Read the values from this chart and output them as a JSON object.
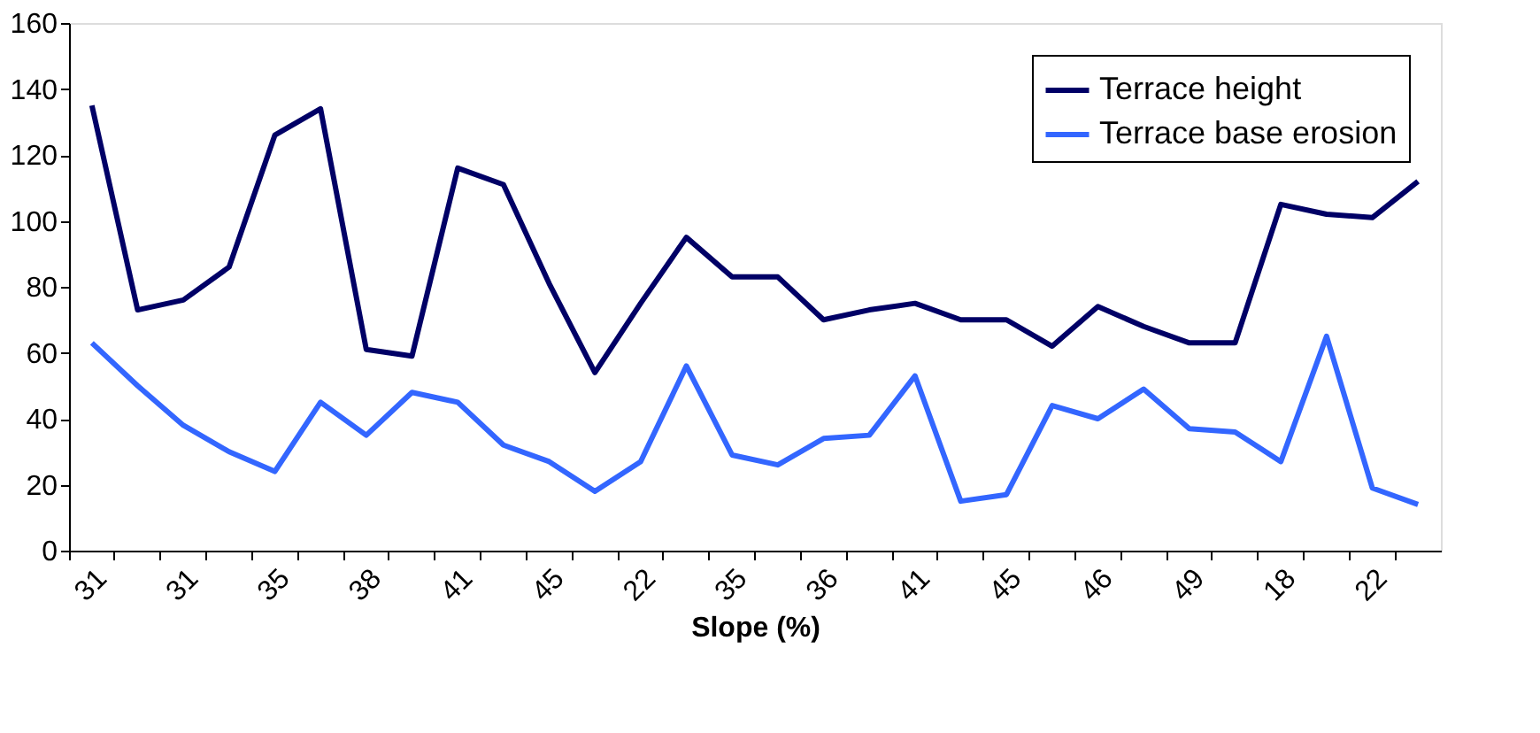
{
  "chart_data": {
    "type": "line",
    "xlabel": "Slope (%)",
    "categories": [
      "31",
      null,
      "31",
      null,
      "35",
      null,
      "38",
      null,
      "41",
      null,
      "45",
      null,
      "22",
      null,
      "35",
      null,
      "36",
      null,
      "41",
      null,
      "45",
      null,
      "46",
      null,
      "49",
      null,
      "18",
      null,
      "22",
      null
    ],
    "series": [
      {
        "name": "Terrace height",
        "color": "#000066",
        "values": [
          135,
          73,
          76,
          86,
          126,
          134,
          61,
          59,
          116,
          111,
          81,
          54,
          75,
          95,
          83,
          83,
          70,
          73,
          75,
          70,
          70,
          62,
          74,
          68,
          63,
          63,
          105,
          102,
          101,
          112
        ]
      },
      {
        "name": "Terrace base erosion",
        "color": "#3366ff",
        "values": [
          63,
          50,
          38,
          30,
          24,
          45,
          35,
          48,
          45,
          32,
          27,
          18,
          27,
          56,
          29,
          26,
          34,
          35,
          53,
          15,
          17,
          44,
          40,
          49,
          37,
          36,
          27,
          65,
          19,
          14
        ]
      }
    ],
    "ylim": [
      0,
      160
    ],
    "yticks": [
      0,
      20,
      40,
      60,
      80,
      100,
      120,
      140,
      160
    ],
    "grid": false,
    "legend": "top right",
    "marker": "none",
    "line_style": "solid"
  }
}
